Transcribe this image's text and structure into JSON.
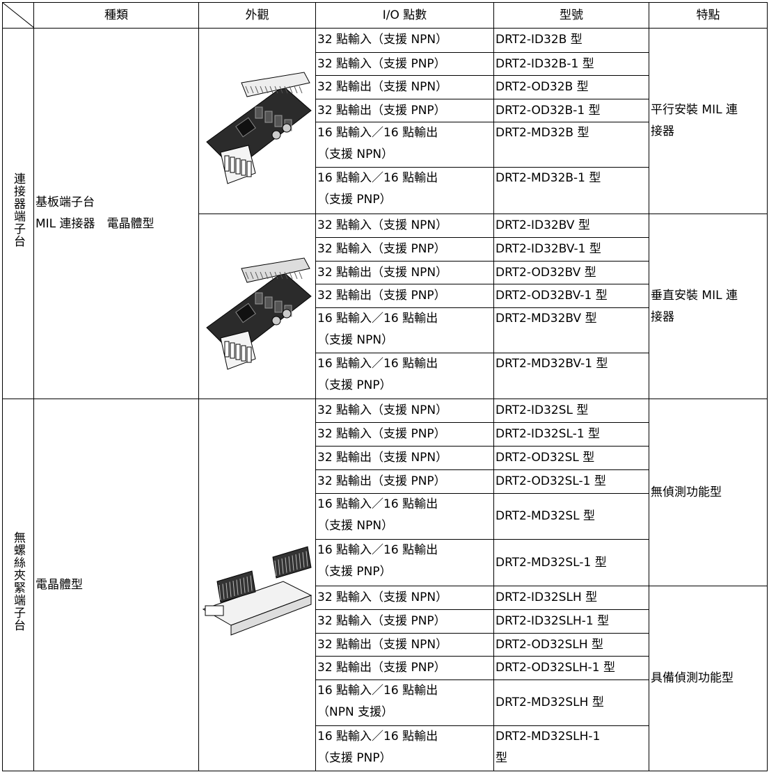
{
  "header": {
    "columns": [
      "種類",
      "外觀",
      "I/O 點數",
      "型號",
      "特點"
    ]
  },
  "sections": [
    {
      "category": "連接器端子台",
      "type": "基板端子台\nMIL 連接器　電晶體型",
      "groups": [
        {
          "feature": "平行安裝 MIL 連\n接器",
          "rows": [
            {
              "io": "32 點輸入（支援 NPN）",
              "model": "DRT2-ID32B 型"
            },
            {
              "io": "32 點輸入（支援 PNP）",
              "model": "DRT2-ID32B-1 型"
            },
            {
              "io": "32 點輸出（支援 NPN）",
              "model": "DRT2-OD32B 型"
            },
            {
              "io": "32 點輸出（支援 PNP）",
              "model": "DRT2-OD32B-1 型"
            },
            {
              "io": "16 點輸入／16 點輸出\n（支援 NPN）",
              "model": "DRT2-MD32B 型"
            },
            {
              "io": "16 點輸入／16 點輸出\n（支援 PNP）",
              "model": "DRT2-MD32B-1 型"
            }
          ]
        },
        {
          "feature": "垂直安裝 MIL 連\n接器",
          "rows": [
            {
              "io": "32 點輸入（支援 NPN）",
              "model": "DRT2-ID32BV 型"
            },
            {
              "io": "32 點輸入（支援 PNP）",
              "model": "DRT2-ID32BV-1 型"
            },
            {
              "io": "32 點輸出（支援 NPN）",
              "model": "DRT2-OD32BV 型"
            },
            {
              "io": "32 點輸出（支援 PNP）",
              "model": "DRT2-OD32BV-1 型"
            },
            {
              "io": "16 點輸入／16 點輸出\n（支援 NPN）",
              "model": "DRT2-MD32BV 型"
            },
            {
              "io": "16 點輸入／16 點輸出\n（支援 PNP）",
              "model": "DRT2-MD32BV-1 型"
            }
          ]
        }
      ]
    },
    {
      "category": "無螺絲夾緊端子台",
      "type": "電晶體型",
      "groups": [
        {
          "feature": "無偵測功能型",
          "rows": [
            {
              "io": "32 點輸入（支援 NPN）",
              "model": "DRT2-ID32SL 型"
            },
            {
              "io": "32 點輸入（支援 PNP）",
              "model": "DRT2-ID32SL-1 型"
            },
            {
              "io": "32 點輸出（支援 NPN）",
              "model": "DRT2-OD32SL 型"
            },
            {
              "io": "32 點輸出（支援 PNP）",
              "model": "DRT2-OD32SL-1 型"
            },
            {
              "io": "16 點輸入／16 點輸出\n（支援 NPN）",
              "model": "DRT2-MD32SL 型"
            },
            {
              "io": "16 點輸入／16 點輸出\n（支援 PNP）",
              "model": "DRT2-MD32SL-1 型"
            }
          ]
        },
        {
          "feature": "具備偵測功能型",
          "rows": [
            {
              "io": "32 點輸入（支援 NPN）",
              "model": "DRT2-ID32SLH 型"
            },
            {
              "io": "32 點輸入（支援 PNP）",
              "model": "DRT2-ID32SLH-1 型"
            },
            {
              "io": "32 點輸出（支援 NPN）",
              "model": "DRT2-OD32SLH 型"
            },
            {
              "io": "32 點輸出（支援 PNP）",
              "model": "DRT2-OD32SLH-1 型"
            },
            {
              "io": "16 點輸入／16 點輸出\n（NPN 支援）",
              "model": "DRT2-MD32SLH 型"
            },
            {
              "io": "16 點輸入／16 點輸出\n（支援 PNP）",
              "model": "DRT2-MD32SLH-1\n型"
            }
          ]
        }
      ]
    }
  ]
}
